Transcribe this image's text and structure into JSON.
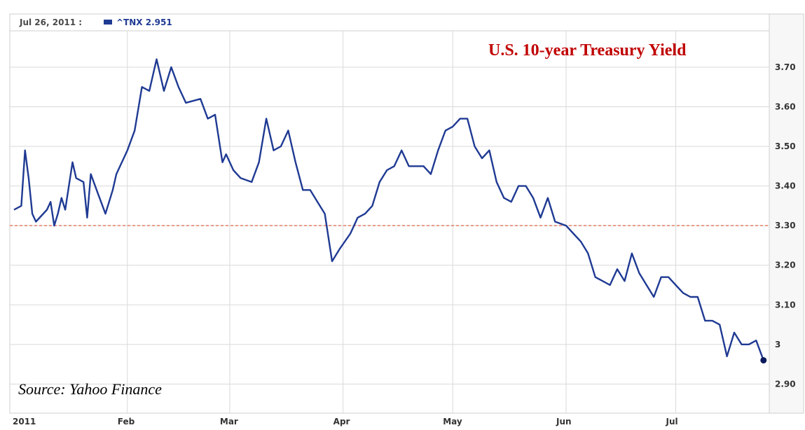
{
  "header": {
    "date_label": "Jul 26, 2011 :",
    "series_label": "^TNX 2.951"
  },
  "colors": {
    "series": "#1f3a93",
    "reference_line": "#e0664a",
    "title": "#c00000",
    "grid": "#d9d9d9"
  },
  "chart_data": {
    "type": "line",
    "title": "U.S. 10-year Treasury Yield",
    "annotation": "Source: Yahoo Finance",
    "xlabel": "",
    "ylabel": "",
    "ylim": [
      2.83,
      3.79
    ],
    "grid": true,
    "y_ticks": [
      {
        "value": 2.9,
        "label": "2.90"
      },
      {
        "value": 3.0,
        "label": "3"
      },
      {
        "value": 3.1,
        "label": "3.10"
      },
      {
        "value": 3.2,
        "label": "3.20"
      },
      {
        "value": 3.3,
        "label": "3.30"
      },
      {
        "value": 3.4,
        "label": "3.40"
      },
      {
        "value": 3.5,
        "label": "3.50"
      },
      {
        "value": 3.6,
        "label": "3.60"
      },
      {
        "value": 3.7,
        "label": "3.70"
      }
    ],
    "x_ticks": [
      {
        "date": "2011-01-01",
        "label": "2011"
      },
      {
        "date": "2011-02-01",
        "label": "Feb"
      },
      {
        "date": "2011-03-01",
        "label": "Mar"
      },
      {
        "date": "2011-04-01",
        "label": "Apr"
      },
      {
        "date": "2011-05-01",
        "label": "May"
      },
      {
        "date": "2011-06-01",
        "label": "Jun"
      },
      {
        "date": "2011-07-01",
        "label": "Jul"
      }
    ],
    "xlim": [
      "2011-01-01",
      "2011-07-26"
    ],
    "reference_line": {
      "value": 3.3,
      "style": "dashed"
    },
    "series": [
      {
        "name": "^TNX",
        "points": [
          [
            "2011-01-01",
            3.34
          ],
          [
            "2011-01-03",
            3.35
          ],
          [
            "2011-01-04",
            3.49
          ],
          [
            "2011-01-05",
            3.42
          ],
          [
            "2011-01-06",
            3.33
          ],
          [
            "2011-01-07",
            3.31
          ],
          [
            "2011-01-10",
            3.34
          ],
          [
            "2011-01-11",
            3.36
          ],
          [
            "2011-01-12",
            3.3
          ],
          [
            "2011-01-13",
            3.33
          ],
          [
            "2011-01-14",
            3.37
          ],
          [
            "2011-01-15",
            3.34
          ],
          [
            "2011-01-17",
            3.46
          ],
          [
            "2011-01-18",
            3.42
          ],
          [
            "2011-01-20",
            3.41
          ],
          [
            "2011-01-21",
            3.32
          ],
          [
            "2011-01-22",
            3.43
          ],
          [
            "2011-01-24",
            3.38
          ],
          [
            "2011-01-26",
            3.33
          ],
          [
            "2011-01-28",
            3.39
          ],
          [
            "2011-01-29",
            3.43
          ],
          [
            "2011-02-01",
            3.49
          ],
          [
            "2011-02-03",
            3.54
          ],
          [
            "2011-02-05",
            3.65
          ],
          [
            "2011-02-07",
            3.64
          ],
          [
            "2011-02-09",
            3.72
          ],
          [
            "2011-02-11",
            3.64
          ],
          [
            "2011-02-13",
            3.7
          ],
          [
            "2011-02-15",
            3.65
          ],
          [
            "2011-02-17",
            3.61
          ],
          [
            "2011-02-21",
            3.62
          ],
          [
            "2011-02-23",
            3.57
          ],
          [
            "2011-02-25",
            3.58
          ],
          [
            "2011-02-27",
            3.46
          ],
          [
            "2011-02-28",
            3.48
          ],
          [
            "2011-03-02",
            3.44
          ],
          [
            "2011-03-04",
            3.42
          ],
          [
            "2011-03-07",
            3.41
          ],
          [
            "2011-03-09",
            3.46
          ],
          [
            "2011-03-11",
            3.57
          ],
          [
            "2011-03-13",
            3.49
          ],
          [
            "2011-03-15",
            3.5
          ],
          [
            "2011-03-17",
            3.54
          ],
          [
            "2011-03-19",
            3.46
          ],
          [
            "2011-03-21",
            3.39
          ],
          [
            "2011-03-23",
            3.39
          ],
          [
            "2011-03-25",
            3.36
          ],
          [
            "2011-03-27",
            3.33
          ],
          [
            "2011-03-29",
            3.21
          ],
          [
            "2011-03-31",
            3.24
          ],
          [
            "2011-04-03",
            3.28
          ],
          [
            "2011-04-05",
            3.32
          ],
          [
            "2011-04-07",
            3.33
          ],
          [
            "2011-04-09",
            3.35
          ],
          [
            "2011-04-11",
            3.41
          ],
          [
            "2011-04-13",
            3.44
          ],
          [
            "2011-04-15",
            3.45
          ],
          [
            "2011-04-17",
            3.49
          ],
          [
            "2011-04-19",
            3.45
          ],
          [
            "2011-04-23",
            3.45
          ],
          [
            "2011-04-25",
            3.43
          ],
          [
            "2011-04-27",
            3.49
          ],
          [
            "2011-04-29",
            3.54
          ],
          [
            "2011-05-01",
            3.55
          ],
          [
            "2011-05-03",
            3.57
          ],
          [
            "2011-05-05",
            3.57
          ],
          [
            "2011-05-07",
            3.5
          ],
          [
            "2011-05-09",
            3.47
          ],
          [
            "2011-05-11",
            3.49
          ],
          [
            "2011-05-13",
            3.41
          ],
          [
            "2011-05-15",
            3.37
          ],
          [
            "2011-05-17",
            3.36
          ],
          [
            "2011-05-19",
            3.4
          ],
          [
            "2011-05-21",
            3.4
          ],
          [
            "2011-05-23",
            3.37
          ],
          [
            "2011-05-25",
            3.32
          ],
          [
            "2011-05-27",
            3.37
          ],
          [
            "2011-05-29",
            3.31
          ],
          [
            "2011-06-01",
            3.3
          ],
          [
            "2011-06-03",
            3.28
          ],
          [
            "2011-06-05",
            3.26
          ],
          [
            "2011-06-07",
            3.23
          ],
          [
            "2011-06-09",
            3.17
          ],
          [
            "2011-06-11",
            3.16
          ],
          [
            "2011-06-13",
            3.15
          ],
          [
            "2011-06-15",
            3.19
          ],
          [
            "2011-06-17",
            3.16
          ],
          [
            "2011-06-19",
            3.23
          ],
          [
            "2011-06-21",
            3.18
          ],
          [
            "2011-06-23",
            3.15
          ],
          [
            "2011-06-25",
            3.12
          ],
          [
            "2011-06-27",
            3.17
          ],
          [
            "2011-06-29",
            3.17
          ],
          [
            "2011-07-01",
            3.15
          ],
          [
            "2011-07-03",
            3.13
          ],
          [
            "2011-07-05",
            3.12
          ],
          [
            "2011-07-07",
            3.12
          ],
          [
            "2011-07-09",
            3.06
          ],
          [
            "2011-07-11",
            3.06
          ],
          [
            "2011-07-13",
            3.05
          ],
          [
            "2011-07-15",
            2.97
          ],
          [
            "2011-07-17",
            3.03
          ],
          [
            "2011-07-19",
            3.0
          ],
          [
            "2011-07-21",
            3.0
          ],
          [
            "2011-07-23",
            3.01
          ],
          [
            "2011-07-25",
            2.96
          ]
        ]
      }
    ]
  }
}
